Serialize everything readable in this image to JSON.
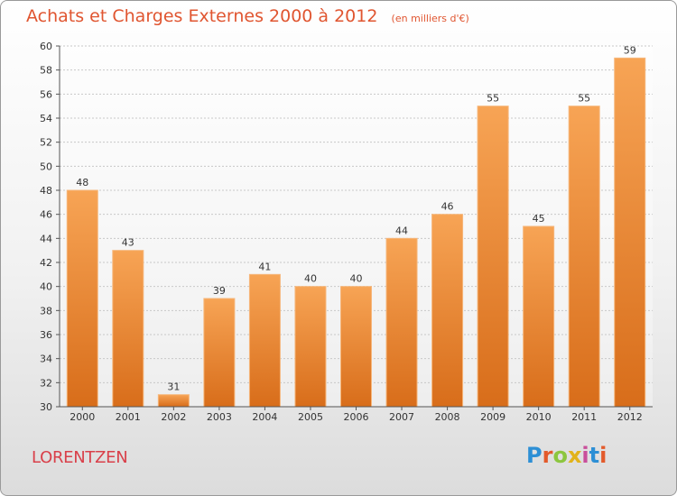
{
  "chart_data": {
    "type": "bar",
    "title": "Achats et Charges Externes 2000 à 2012",
    "subtitle": "(en milliers d'€)",
    "categories": [
      "2000",
      "2001",
      "2002",
      "2003",
      "2004",
      "2005",
      "2006",
      "2007",
      "2008",
      "2009",
      "2010",
      "2011",
      "2012"
    ],
    "values": [
      48,
      43,
      31,
      39,
      41,
      40,
      40,
      44,
      46,
      55,
      45,
      55,
      59
    ],
    "ylim": [
      30,
      60
    ],
    "yticks": [
      30,
      32,
      34,
      36,
      38,
      40,
      42,
      44,
      46,
      48,
      50,
      52,
      54,
      56,
      58,
      60
    ],
    "grid": true,
    "bar_color_top": "#f7a455",
    "bar_color_bottom": "#d86d1a"
  },
  "footer": {
    "town": "LORENTZEN",
    "brand": "Proxiti",
    "brand_colors": [
      "#2d8fd5",
      "#e35a2b",
      "#8cc63f",
      "#e2b31b",
      "#c94f9b",
      "#2d8fd5",
      "#e35a2b"
    ]
  }
}
